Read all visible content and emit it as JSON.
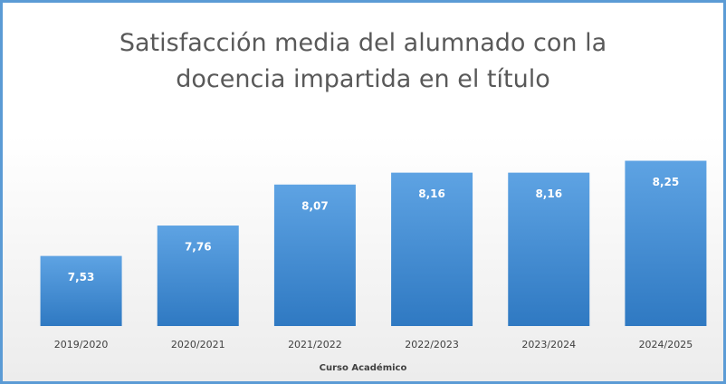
{
  "chart_data": {
    "type": "bar",
    "title": "Satisfacción media del alumnado con la docencia impartida en el título",
    "x_label": "Curso Académico",
    "categories": [
      "2019/2020",
      "2020/2021",
      "2021/2022",
      "2022/2023",
      "2023/2024",
      "2024/2025"
    ],
    "values": [
      7.53,
      7.76,
      8.07,
      8.16,
      8.16,
      8.25
    ],
    "value_labels": [
      "7,53",
      "7,76",
      "8,07",
      "8,16",
      "8,16",
      "8,25"
    ],
    "color": "#3f86cc",
    "ylim": [
      7,
      8.5
    ]
  }
}
